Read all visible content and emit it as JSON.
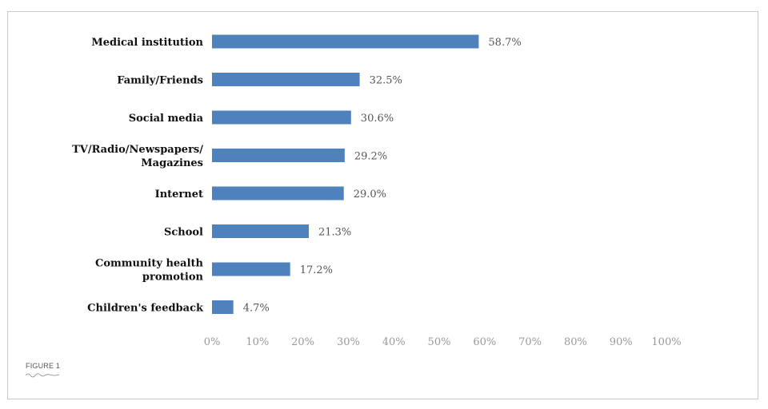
{
  "figure_label": "FIGURE 1",
  "colors": {
    "bar": "#4f81bd",
    "value_text": "#555555",
    "tick_text": "#999999"
  },
  "chart_data": {
    "type": "bar",
    "orientation": "horizontal",
    "title": "",
    "xlabel": "",
    "ylabel": "",
    "xlim": [
      0,
      100
    ],
    "categories": [
      [
        "Medical institution"
      ],
      [
        "Family/Friends"
      ],
      [
        "Social media"
      ],
      [
        "TV/Radio/Newspapers/",
        "Magazines"
      ],
      [
        "Internet"
      ],
      [
        "School"
      ],
      [
        "Community health",
        "promotion"
      ],
      [
        "Children's feedback"
      ]
    ],
    "values": [
      58.7,
      32.5,
      30.6,
      29.2,
      29.0,
      21.3,
      17.2,
      4.7
    ],
    "value_labels": [
      "58.7%",
      "32.5%",
      "30.6%",
      "29.2%",
      "29.0%",
      "21.3%",
      "17.2%",
      "4.7%"
    ],
    "x_ticks": [
      "0%",
      "10%",
      "20%",
      "30%",
      "40%",
      "50%",
      "60%",
      "70%",
      "80%",
      "90%",
      "100%"
    ],
    "grid": false,
    "legend": "none"
  }
}
